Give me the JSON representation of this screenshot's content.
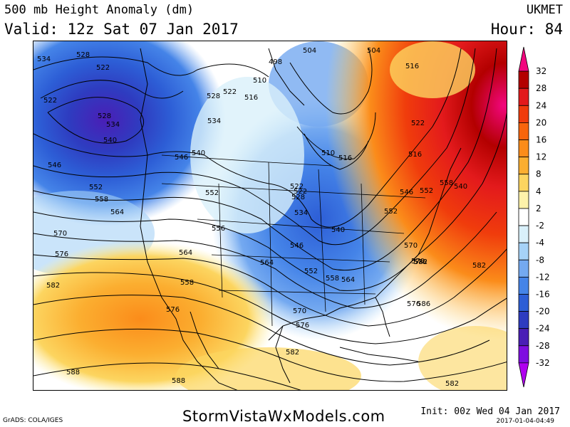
{
  "header": {
    "title": "500 mb Height Anomaly (dm)",
    "valid": "Valid: 12z Sat 07 Jan 2017",
    "model": "UKMET",
    "hour": "Hour: 84"
  },
  "colorbar": {
    "labels": [
      "32",
      "28",
      "24",
      "20",
      "16",
      "12",
      "8",
      "4",
      "2",
      "-2",
      "-4",
      "-8",
      "-12",
      "-16",
      "-20",
      "-24",
      "-28",
      "-32"
    ],
    "colors": [
      "#f2067e",
      "#b30000",
      "#e31a1c",
      "#f03c0c",
      "#f8650c",
      "#fb8c1a",
      "#fbae30",
      "#fcd560",
      "#fef2aa",
      "#ffffff",
      "#d9f0fa",
      "#a6d2f7",
      "#74a9f0",
      "#4584e8",
      "#2d5ed6",
      "#2e3cc0",
      "#4a1eb6",
      "#7e0ee0",
      "#b000f0"
    ]
  },
  "contour_labels": [
    "534",
    "528",
    "522",
    "522",
    "528",
    "534",
    "540",
    "546",
    "552",
    "558",
    "564",
    "570",
    "576",
    "582",
    "588",
    "588",
    "498",
    "504",
    "504",
    "510",
    "516",
    "516",
    "522",
    "528",
    "522",
    "516",
    "522",
    "534",
    "540",
    "546",
    "552",
    "556",
    "510",
    "516",
    "522",
    "528",
    "534",
    "540",
    "546",
    "552",
    "558",
    "564",
    "570",
    "576",
    "582",
    "576",
    "570",
    "564",
    "558",
    "552",
    "546",
    "540",
    "552",
    "558",
    "564",
    "570",
    "576",
    "582",
    "586",
    "582",
    "576",
    "582",
    "588"
  ],
  "footer": {
    "grads": "GrADS: COLA/IGES",
    "site": "StormVistaWxModels.com",
    "init": "Init: 00z Wed 04 Jan 2017",
    "stamp": "2017-01-04-04:49"
  }
}
